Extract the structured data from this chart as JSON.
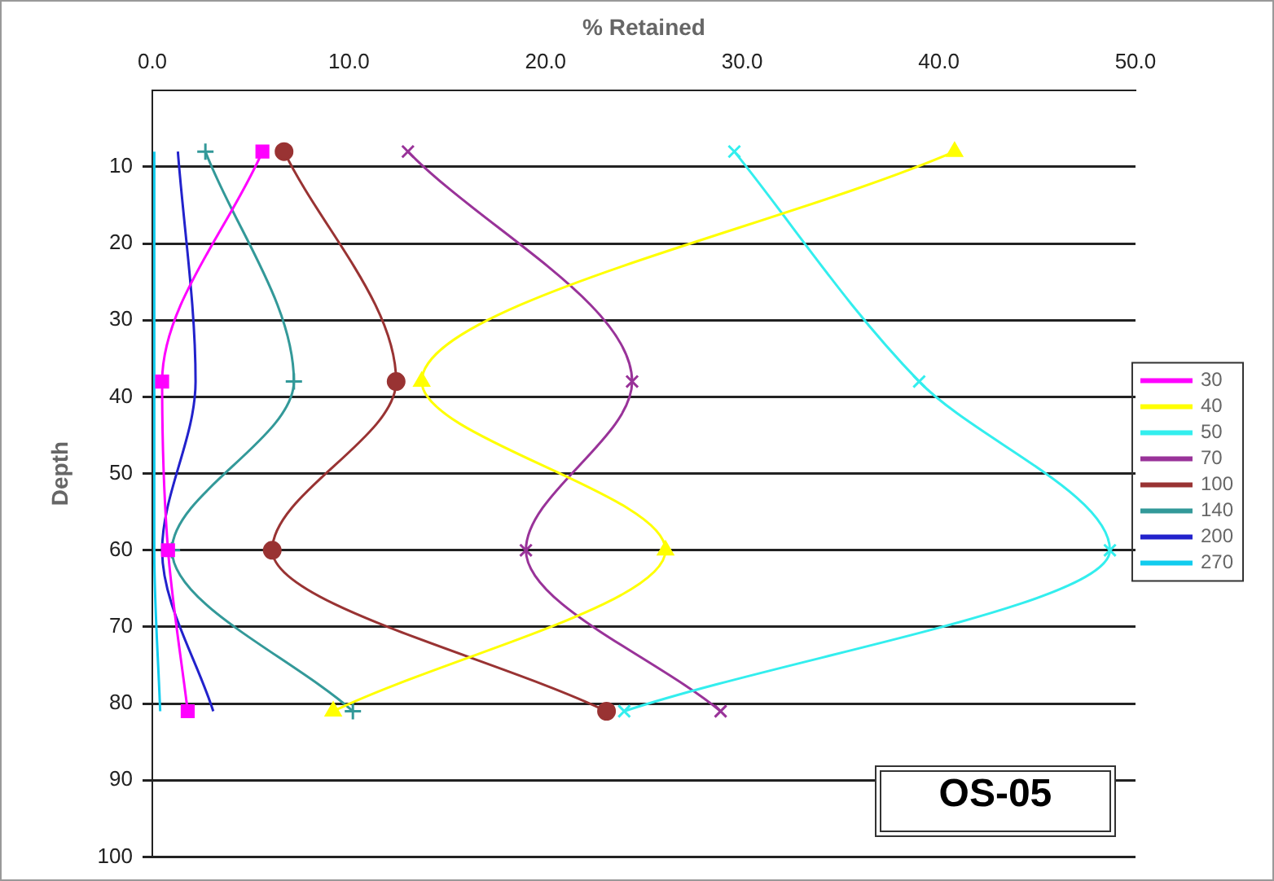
{
  "chart_data": {
    "type": "line",
    "xlabel": "% Retained",
    "ylabel": "Depth",
    "xlim": [
      0,
      50
    ],
    "xticks": [
      {
        "value": 0,
        "label": "0.0"
      },
      {
        "value": 10,
        "label": "10.0"
      },
      {
        "value": 20,
        "label": "20.0"
      },
      {
        "value": 30,
        "label": "30.0"
      },
      {
        "value": 40,
        "label": "40.0"
      },
      {
        "value": 50,
        "label": "50.0"
      }
    ],
    "ylim": [
      100,
      0
    ],
    "yticks": [
      10,
      20,
      30,
      40,
      50,
      60,
      70,
      80,
      90,
      100
    ],
    "grid": "y",
    "legend": "right",
    "line_style": "solid",
    "annotations": [
      "OS-05"
    ],
    "series": [
      {
        "name": "30",
        "color": "#ff00ff",
        "marker": "square",
        "x": [
          5.6,
          0.5,
          0.8,
          1.8
        ],
        "values": [
          8,
          38,
          60,
          81
        ]
      },
      {
        "name": "40",
        "color": "#ffff00",
        "marker": "triangle",
        "x": [
          40.8,
          13.7,
          26.1,
          9.2
        ],
        "values": [
          8,
          38,
          60,
          81
        ]
      },
      {
        "name": "50",
        "color": "#33eeee",
        "marker": "cross",
        "x": [
          29.6,
          39.0,
          48.7,
          24.0
        ],
        "values": [
          8,
          38,
          60,
          81
        ]
      },
      {
        "name": "70",
        "color": "#993399",
        "marker": "cross",
        "x": [
          13.0,
          24.4,
          19.0,
          28.9
        ],
        "values": [
          8,
          38,
          60,
          81
        ]
      },
      {
        "name": "100",
        "color": "#993333",
        "marker": "circle",
        "x": [
          6.7,
          12.4,
          6.1,
          23.1
        ],
        "values": [
          8,
          38,
          60,
          81
        ]
      },
      {
        "name": "140",
        "color": "#339999",
        "marker": "plus",
        "x": [
          2.7,
          7.2,
          1.0,
          10.2
        ],
        "values": [
          8,
          38,
          60,
          81
        ]
      },
      {
        "name": "200",
        "color": "#2222cc",
        "marker": "none",
        "x": [
          1.3,
          2.2,
          0.5,
          3.1
        ],
        "values": [
          8,
          38,
          60,
          81
        ]
      },
      {
        "name": "270",
        "color": "#11ccee",
        "marker": "none",
        "x": [
          0.1,
          0.1,
          0.1,
          0.4
        ],
        "values": [
          8,
          38,
          60,
          81
        ]
      }
    ]
  }
}
